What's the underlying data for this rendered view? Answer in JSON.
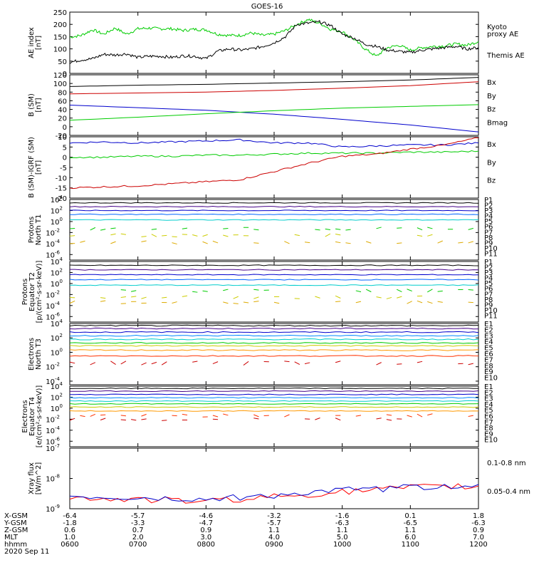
{
  "title": "GOES-16",
  "chart_data": [
    {
      "type": "line",
      "id": "ae",
      "ylabel_lines": [
        "AE index",
        "[nT]"
      ],
      "yticks": [
        "250",
        "200",
        "150",
        "100",
        "50",
        "0"
      ],
      "ylim": [
        0,
        250
      ],
      "legend": [
        {
          "label": "Kyoto",
          "color": "#00cc00"
        },
        {
          "label": "proxy AE",
          "color": "#00cc00"
        },
        {
          "label": "Themis AE",
          "color": "#000000"
        }
      ],
      "series": [
        {
          "name": "Kyoto proxy AE",
          "color": "#00cc00",
          "x": [
            600,
            610,
            620,
            630,
            640,
            650,
            700,
            710,
            720,
            730,
            740,
            750,
            800,
            810,
            820,
            830,
            840,
            850,
            900,
            910,
            920,
            930,
            940,
            950,
            1000,
            1010,
            1020,
            1030,
            1040,
            1050,
            1100,
            1110,
            1120,
            1130,
            1140,
            1150,
            1200
          ],
          "values": [
            148,
            155,
            178,
            160,
            185,
            160,
            182,
            185,
            182,
            182,
            175,
            180,
            178,
            160,
            155,
            155,
            165,
            155,
            160,
            175,
            200,
            220,
            205,
            180,
            170,
            140,
            100,
            70,
            105,
            115,
            95,
            105,
            110,
            112,
            120,
            115,
            130
          ]
        },
        {
          "name": "Themis AE",
          "color": "#000000",
          "x": [
            600,
            610,
            620,
            630,
            640,
            650,
            700,
            710,
            720,
            730,
            740,
            750,
            800,
            810,
            820,
            830,
            840,
            850,
            900,
            910,
            920,
            930,
            940,
            950,
            1000,
            1010,
            1020,
            1030,
            1040,
            1050,
            1100,
            1110,
            1120,
            1130,
            1140,
            1150,
            1200
          ],
          "values": [
            45,
            55,
            60,
            78,
            75,
            80,
            65,
            70,
            70,
            65,
            72,
            70,
            60,
            90,
            100,
            95,
            100,
            110,
            125,
            150,
            200,
            205,
            210,
            195,
            160,
            145,
            120,
            110,
            95,
            90,
            85,
            95,
            100,
            105,
            110,
            100,
            105
          ]
        }
      ]
    },
    {
      "type": "line",
      "id": "bsm",
      "ylabel_lines": [
        "B (SM)",
        "[nT]"
      ],
      "yticks": [
        "120",
        "100",
        "80",
        "60",
        "40",
        "20",
        "0",
        "-20"
      ],
      "ylim": [
        -20,
        120
      ],
      "legend": [
        {
          "label": "Bx",
          "color": "#0000cc"
        },
        {
          "label": "By",
          "color": "#00cc00"
        },
        {
          "label": "Bz",
          "color": "#cc0000"
        },
        {
          "label": "Bmag",
          "color": "#000000"
        }
      ],
      "series": [
        {
          "name": "Bmag",
          "color": "#000000",
          "x": [
            600,
            700,
            800,
            900,
            1000,
            1100,
            1200
          ],
          "values": [
            93,
            96,
            98,
            101,
            104,
            108,
            114
          ]
        },
        {
          "name": "Bz",
          "color": "#cc0000",
          "x": [
            600,
            700,
            800,
            900,
            1000,
            1100,
            1200
          ],
          "values": [
            76,
            78,
            80,
            84,
            89,
            95,
            104
          ]
        },
        {
          "name": "Bx",
          "color": "#0000cc",
          "x": [
            600,
            700,
            800,
            900,
            1000,
            1100,
            1200
          ],
          "values": [
            50,
            44,
            38,
            29,
            17,
            4,
            -12
          ]
        },
        {
          "name": "By",
          "color": "#00cc00",
          "x": [
            600,
            700,
            800,
            900,
            1000,
            1100,
            1200
          ],
          "values": [
            15,
            22,
            30,
            37,
            43,
            47,
            51
          ]
        }
      ]
    },
    {
      "type": "line",
      "id": "bdiff",
      "ylabel_lines": [
        "B (SM)-IGRF (SM)",
        "[nT]"
      ],
      "yticks": [
        "10",
        "5",
        "0",
        "-5",
        "-10",
        "-15",
        "-20"
      ],
      "ylim": [
        -20,
        10
      ],
      "legend": [
        {
          "label": "Bx",
          "color": "#0000cc"
        },
        {
          "label": "By",
          "color": "#00cc00"
        },
        {
          "label": "Bz",
          "color": "#cc0000"
        }
      ],
      "series": [
        {
          "name": "Bx",
          "color": "#0000cc",
          "x": [
            600,
            630,
            700,
            730,
            800,
            830,
            900,
            930,
            1000,
            1030,
            1100,
            1130,
            1200
          ],
          "values": [
            7,
            7.5,
            7,
            7.5,
            8,
            8.5,
            7,
            7,
            5,
            5.5,
            6,
            6,
            7
          ]
        },
        {
          "name": "By",
          "color": "#00cc00",
          "x": [
            600,
            630,
            700,
            730,
            800,
            830,
            900,
            930,
            1000,
            1030,
            1100,
            1130,
            1200
          ],
          "values": [
            0,
            0,
            0.5,
            0.5,
            1,
            1,
            1.5,
            2,
            2,
            2,
            2.5,
            2.5,
            3
          ]
        },
        {
          "name": "Bz",
          "color": "#cc0000",
          "x": [
            600,
            630,
            700,
            730,
            800,
            830,
            900,
            930,
            1000,
            1030,
            1100,
            1130,
            1200
          ],
          "values": [
            -15,
            -14.5,
            -14,
            -13,
            -12,
            -11,
            -7,
            -3,
            0.5,
            1.5,
            4,
            6,
            9.5
          ]
        }
      ]
    },
    {
      "type": "line",
      "id": "protons-t1",
      "ylabel_lines": [
        "Protons",
        "North T1"
      ],
      "log": true,
      "yticks": [
        "10^4",
        "10^2",
        "10^0",
        "10^-2",
        "10^-4",
        "10^-6"
      ],
      "ylim_exp": [
        -7,
        4
      ],
      "channels": [
        "P1",
        "P2",
        "P3",
        "P4",
        "P5",
        "P6",
        "P7",
        "P8",
        "P9",
        "P10",
        "P11"
      ],
      "channel_colors": [
        "#000000",
        "#440088",
        "#0000cc",
        "#0066ff",
        "#00cccc",
        "#00cc00",
        "#cccc00",
        "#ddaa00",
        "#ff6600",
        "#cc0000",
        "#aa0000"
      ],
      "channel_levels": [
        3.4,
        2.7,
        2.0,
        1.3,
        0.3,
        -1.3,
        -2.5,
        -3.8,
        null,
        null,
        null
      ]
    },
    {
      "type": "line",
      "id": "protons-t2",
      "ylabel_lines": [
        "Protons",
        "Equator T2",
        "[p/(cm²-s-sr-keV)]"
      ],
      "log": true,
      "yticks": [
        "10^4",
        "10^2",
        "10^0",
        "10^-2",
        "10^-4",
        "10^-6"
      ],
      "ylim_exp": [
        -7,
        4
      ],
      "channels": [
        "P1",
        "P2",
        "P3",
        "P4",
        "P5",
        "P6",
        "P7",
        "P8",
        "P9",
        "P10",
        "P11"
      ],
      "channel_colors": [
        "#000000",
        "#440088",
        "#0000cc",
        "#0066ff",
        "#00cccc",
        "#00cc00",
        "#cccc00",
        "#ddaa00",
        "#ff6600",
        "#cc0000",
        "#aa0000"
      ],
      "channel_levels": [
        3.3,
        2.5,
        1.6,
        0.7,
        -0.3,
        -1.3,
        -2.5,
        -3.4,
        null,
        null,
        null
      ]
    },
    {
      "type": "line",
      "id": "electrons-t3",
      "ylabel_lines": [
        "Electrons",
        "North T3"
      ],
      "log": true,
      "yticks": [
        "10^4",
        "10^2",
        "10^0",
        "10^-2",
        "10^-4"
      ],
      "ylim_exp": [
        -4.5,
        4
      ],
      "channels": [
        "E1",
        "E2",
        "E3",
        "E4",
        "E5",
        "E6",
        "E7",
        "E8",
        "E9",
        "E10"
      ],
      "channel_colors": [
        "#000000",
        "#440088",
        "#0000cc",
        "#0088ff",
        "#00cccc",
        "#00cc00",
        "#cccc00",
        "#ff9900",
        "#ff3300",
        "#cc0000"
      ],
      "channel_levels": [
        3.7,
        3.3,
        2.8,
        2.3,
        1.8,
        1.3,
        0.9,
        0.3,
        -0.5,
        -1.5
      ]
    },
    {
      "type": "line",
      "id": "electrons-t4",
      "ylabel_lines": [
        "Electrons",
        "Equator T4",
        "[e/(cm²-s-sr-keV)]"
      ],
      "log": true,
      "yticks": [
        "10^4",
        "10^2",
        "10^0",
        "10^-2",
        "10^-4",
        "10^-6"
      ],
      "ylim_exp": [
        -7,
        4
      ],
      "channels": [
        "E1",
        "E2",
        "E3",
        "E4",
        "E5",
        "E6",
        "E7",
        "E8",
        "E9",
        "E10"
      ],
      "channel_colors": [
        "#000000",
        "#440088",
        "#0000cc",
        "#0088ff",
        "#00cccc",
        "#00cc00",
        "#cccc00",
        "#ff9900",
        "#ff3300",
        "#cc0000"
      ],
      "channel_levels": [
        3.6,
        3.1,
        2.5,
        1.9,
        1.3,
        0.8,
        0.2,
        -0.5,
        -1.3,
        -2.0
      ]
    },
    {
      "type": "line",
      "id": "xray",
      "ylabel_lines": [
        "Xray flux",
        "[W/m^2]"
      ],
      "log": true,
      "yticks": [
        "10^-7",
        "10^-8",
        "10^-9"
      ],
      "ylim_exp": [
        -9,
        -7
      ],
      "legend": [
        {
          "label": "0.1-0.8 nm",
          "color": "#ff0000"
        },
        {
          "label": "0.05-0.4 nm",
          "color": "#0000cc"
        }
      ],
      "series": [
        {
          "name": "0.1-0.8 nm",
          "color": "#ff0000",
          "x": [
            600,
            700,
            800,
            900,
            1000,
            1100,
            1200
          ],
          "values_exp": [
            -8.65,
            -8.7,
            -8.75,
            -8.6,
            -8.45,
            -8.3,
            -8.25
          ]
        },
        {
          "name": "0.05-0.4 nm",
          "color": "#0000cc",
          "x": [
            600,
            700,
            800,
            900,
            1000,
            1100,
            1200
          ],
          "values_exp": [
            -8.6,
            -8.65,
            -8.7,
            -8.55,
            -8.4,
            -8.3,
            -8.2
          ]
        }
      ]
    }
  ],
  "xaxis": {
    "rows": [
      {
        "label": "X-GSM",
        "values": [
          "-6.4",
          "-5.7",
          "-4.6",
          "-3.2",
          "-1.6",
          "0.1",
          "1.8"
        ]
      },
      {
        "label": "Y-GSM",
        "values": [
          "-1.8",
          "-3.3",
          "-4.7",
          "-5.7",
          "-6.3",
          "-6.5",
          "-6.3"
        ]
      },
      {
        "label": "Z-GSM",
        "values": [
          "0.6",
          "0.7",
          "0.9",
          "1.1",
          "1.1",
          "1.1",
          "0.9"
        ]
      },
      {
        "label": "MLT",
        "values": [
          "1.0",
          "2.0",
          "3.0",
          "4.0",
          "5.0",
          "6.0",
          "7.0"
        ]
      },
      {
        "label": "hhmm",
        "values": [
          "0600",
          "0700",
          "0800",
          "0900",
          "1000",
          "1100",
          "1200"
        ]
      }
    ],
    "date": "2020 Sep 11",
    "time_range": [
      600,
      1200
    ]
  }
}
